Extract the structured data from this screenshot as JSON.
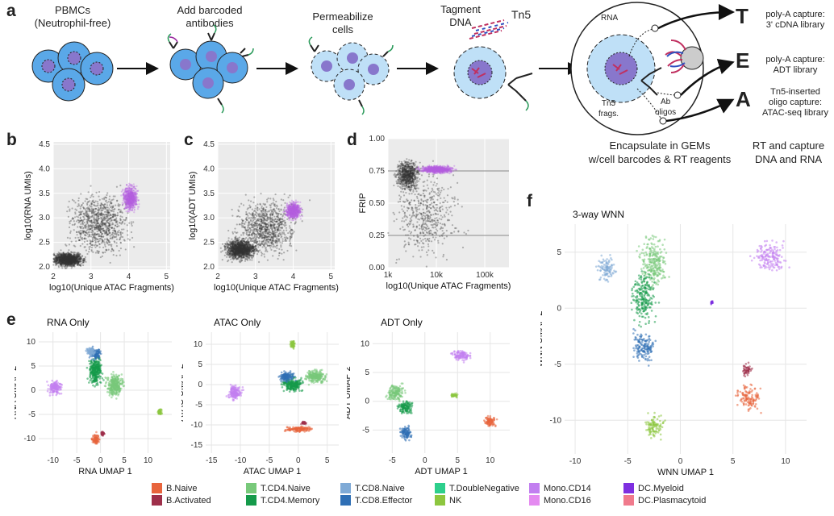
{
  "panel_letters": {
    "a": "a",
    "b": "b",
    "c": "c",
    "d": "d",
    "e": "e",
    "f": "f"
  },
  "workflow": {
    "step1": [
      "PBMCs",
      "(Neutrophil-free)"
    ],
    "step2": [
      "Add barcoded",
      "antibodies"
    ],
    "step3": [
      "Permeabilize",
      "cells"
    ],
    "step4": [
      "Tagment",
      "DNA"
    ],
    "tn5": "Tn5",
    "gem_rna": "RNA",
    "gem_tn5": [
      "Tn5",
      "frags."
    ],
    "gem_ab": [
      "Ab",
      "oligos"
    ],
    "encapsulate": [
      "Encapsulate in GEMs",
      "w/cell barcodes & RT reagents"
    ],
    "rt": [
      "RT and capture",
      "DNA and RNA"
    ],
    "outputs": [
      {
        "letter": "T",
        "lines": [
          "poly-A capture:",
          "3' cDNA library"
        ]
      },
      {
        "letter": "E",
        "lines": [
          "poly-A capture:",
          "ADT library"
        ]
      },
      {
        "letter": "A",
        "lines": [
          "Tn5-inserted",
          "oligo capture:",
          "ATAC-seq library"
        ]
      }
    ]
  },
  "colors": {
    "cell_fill": "#5aa8e8",
    "nucleus": "#8877cc",
    "purple": "#b45fe0",
    "gray": "#333333",
    "B.Naive": "#e8643c",
    "B.Activated": "#9e2f4a",
    "T.CD4.Naive": "#78c97a",
    "T.CD4.Memory": "#159a4a",
    "T.CD8.Naive": "#7faad6",
    "T.CD8.Effector": "#2f6fb5",
    "T.DoubleNegative": "#2dcf8c",
    "NK": "#8dc63f",
    "Mono.CD14": "#c27ff0",
    "Mono.CD16": "#e48af0",
    "DC.Myeloid": "#7e2fe0",
    "DC.Plasmacytoid": "#f07a8c"
  },
  "chart_data": [
    {
      "panel": "b",
      "type": "scatter",
      "xlabel": "log10(Unique ATAC Fragments)",
      "ylabel": "log10(RNA UMIs)",
      "xticks": [
        "2",
        "3",
        "4",
        "5"
      ],
      "yticks": [
        "2.0",
        "2.5",
        "3.0",
        "3.5",
        "4.0",
        "4.5"
      ],
      "xlim": [
        2,
        5.1
      ],
      "ylim": [
        1.95,
        4.55
      ],
      "series": [
        {
          "color": "gray",
          "center": [
            2.4,
            2.15
          ],
          "spread": [
            0.35,
            0.12
          ],
          "n": 1300
        },
        {
          "color": "gray",
          "center": [
            3.2,
            2.9
          ],
          "spread": [
            0.7,
            0.55
          ],
          "n": 900
        },
        {
          "color": "purple",
          "center": [
            4.05,
            3.4
          ],
          "spread": [
            0.18,
            0.22
          ],
          "n": 700
        }
      ]
    },
    {
      "panel": "c",
      "type": "scatter",
      "xlabel": "log10(Unique ATAC Fragments)",
      "ylabel": "log10(ADT UMIs)",
      "xticks": [
        "2",
        "3",
        "4",
        "5"
      ],
      "yticks": [
        "2.0",
        "2.5",
        "3.0",
        "3.5",
        "4.0",
        "4.5"
      ],
      "xlim": [
        2,
        5.1
      ],
      "ylim": [
        1.95,
        4.55
      ],
      "series": [
        {
          "color": "gray",
          "center": [
            2.6,
            2.35
          ],
          "spread": [
            0.35,
            0.18
          ],
          "n": 1300
        },
        {
          "color": "gray",
          "center": [
            3.3,
            2.8
          ],
          "spread": [
            0.7,
            0.5
          ],
          "n": 900
        },
        {
          "color": "purple",
          "center": [
            4.0,
            3.15
          ],
          "spread": [
            0.18,
            0.15
          ],
          "n": 700
        }
      ]
    },
    {
      "panel": "d",
      "type": "scatter",
      "xlabel": "log10(Unique ATAC Fragments)",
      "ylabel": "FRIP",
      "xticks": [
        "1k",
        "10k",
        "100k"
      ],
      "yticks": [
        "0.00",
        "0.25",
        "0.50",
        "0.75",
        "1.00"
      ],
      "xlim": [
        3,
        5.5
      ],
      "ylim": [
        0,
        1
      ],
      "hlines": [
        0.75,
        0.25
      ],
      "series": [
        {
          "color": "gray",
          "center": [
            3.4,
            0.72
          ],
          "spread": [
            0.2,
            0.1
          ],
          "n": 700
        },
        {
          "color": "gray",
          "center": [
            3.8,
            0.4
          ],
          "spread": [
            0.6,
            0.3
          ],
          "n": 500
        },
        {
          "color": "purple",
          "center": [
            4.0,
            0.76
          ],
          "spread": [
            0.3,
            0.025
          ],
          "n": 800
        }
      ]
    },
    {
      "panel": "e1",
      "type": "scatter",
      "title": "RNA Only",
      "xlabel": "RNA UMAP 1",
      "ylabel": "RNA UMAP 2",
      "xticks": [
        "-10",
        "-5",
        "0",
        "5",
        "10"
      ],
      "yticks": [
        "-10",
        "-5",
        "0",
        "5",
        "10"
      ],
      "xlim": [
        -13,
        15
      ],
      "ylim": [
        -13,
        12
      ],
      "clusters": [
        [
          "Mono.CD14",
          [
            -9.5,
            0.5
          ],
          [
            1.2,
            1.2
          ]
        ],
        [
          "T.CD4.Naive",
          [
            3,
            1
          ],
          [
            1.5,
            2
          ]
        ],
        [
          "T.CD4.Memory",
          [
            -1,
            4
          ],
          [
            1.2,
            2.5
          ]
        ],
        [
          "T.CD8.Effector",
          [
            -1,
            7.5
          ],
          [
            1,
            1
          ]
        ],
        [
          "T.CD8.Naive",
          [
            -2,
            8
          ],
          [
            0.8,
            0.8
          ]
        ],
        [
          "NK",
          [
            12.5,
            -4.5
          ],
          [
            0.4,
            0.6
          ]
        ],
        [
          "B.Naive",
          [
            -1,
            -10
          ],
          [
            0.7,
            0.9
          ]
        ],
        [
          "B.Activated",
          [
            0.5,
            -9
          ],
          [
            0.3,
            0.4
          ]
        ]
      ]
    },
    {
      "panel": "e2",
      "type": "scatter",
      "title": "ATAC Only",
      "xlabel": "ATAC UMAP 1",
      "ylabel": "ATAC UMAP 2",
      "xticks": [
        "-15",
        "-10",
        "-5",
        "0",
        "5"
      ],
      "yticks": [
        "-15",
        "-10",
        "-5",
        "0",
        "5",
        "10"
      ],
      "xlim": [
        -16,
        7
      ],
      "ylim": [
        -17,
        13
      ],
      "clusters": [
        [
          "Mono.CD14",
          [
            -11,
            -2
          ],
          [
            1,
            1.5
          ]
        ],
        [
          "T.CD4.Naive",
          [
            3,
            2
          ],
          [
            1.5,
            1.5
          ]
        ],
        [
          "T.CD4.Memory",
          [
            -1,
            0
          ],
          [
            1.5,
            1.5
          ]
        ],
        [
          "T.CD8.Effector",
          [
            -2,
            2
          ],
          [
            1.2,
            1
          ]
        ],
        [
          "NK",
          [
            -1,
            10
          ],
          [
            0.4,
            1
          ]
        ],
        [
          "B.Naive",
          [
            0,
            -11
          ],
          [
            2,
            0.6
          ]
        ],
        [
          "B.Activated",
          [
            1,
            -9.5
          ],
          [
            0.4,
            0.3
          ]
        ]
      ]
    },
    {
      "panel": "e3",
      "type": "scatter",
      "title": "ADT Only",
      "xlabel": "ADT UMAP 1",
      "ylabel": "ADT UMAP 2",
      "xticks": [
        "-5",
        "0",
        "5",
        "10"
      ],
      "yticks": [
        "-5",
        "0",
        "5",
        "10"
      ],
      "xlim": [
        -8,
        13
      ],
      "ylim": [
        -9,
        12
      ],
      "clusters": [
        [
          "Mono.CD14",
          [
            5.5,
            8
          ],
          [
            1.2,
            0.8
          ]
        ],
        [
          "T.CD4.Naive",
          [
            -4.5,
            1.5
          ],
          [
            1.2,
            1.2
          ]
        ],
        [
          "T.CD4.Memory",
          [
            -3,
            -1
          ],
          [
            1,
            1
          ]
        ],
        [
          "T.CD8.Effector",
          [
            -3,
            -5.5
          ],
          [
            0.8,
            1
          ]
        ],
        [
          "NK",
          [
            4.5,
            1
          ],
          [
            0.5,
            0.3
          ]
        ],
        [
          "B.Naive",
          [
            10,
            -3.5
          ],
          [
            0.8,
            0.8
          ]
        ]
      ]
    },
    {
      "panel": "f",
      "type": "scatter",
      "title": "3-way WNN",
      "xlabel": "WNN UMAP 1",
      "ylabel": "WNN UMAP 2",
      "xticks": [
        "-10",
        "-5",
        "0",
        "5",
        "10"
      ],
      "yticks": [
        "-10",
        "-5",
        "0",
        "5"
      ],
      "xlim": [
        -11,
        12
      ],
      "ylim": [
        -13,
        7.5
      ],
      "clusters": [
        [
          "T.CD4.Naive",
          [
            -2.5,
            4
          ],
          [
            1.2,
            2
          ]
        ],
        [
          "T.CD4.Memory",
          [
            -3.5,
            1
          ],
          [
            1,
            2
          ]
        ],
        [
          "T.CD8.Naive",
          [
            -7,
            3.5
          ],
          [
            0.8,
            1
          ]
        ],
        [
          "T.CD8.Effector",
          [
            -3.5,
            -3.5
          ],
          [
            1,
            1.3
          ]
        ],
        [
          "Mono.CD14",
          [
            8.5,
            4.5
          ],
          [
            1.2,
            1.2
          ]
        ],
        [
          "B.Naive",
          [
            6.5,
            -8
          ],
          [
            1,
            1
          ]
        ],
        [
          "B.Activated",
          [
            6.3,
            -5.5
          ],
          [
            0.4,
            0.5
          ]
        ],
        [
          "NK",
          [
            -2.5,
            -10.5
          ],
          [
            0.8,
            1
          ]
        ],
        [
          "DC.Myeloid",
          [
            3,
            0.5
          ],
          [
            0.1,
            0.1
          ]
        ]
      ]
    }
  ],
  "legend": [
    [
      "B.Naive",
      "B.Activated"
    ],
    [
      "T.CD4.Naive",
      "T.CD4.Memory"
    ],
    [
      "T.CD8.Naive",
      "T.CD8.Effector"
    ],
    [
      "T.DoubleNegative",
      "NK"
    ],
    [
      "Mono.CD14",
      "Mono.CD16"
    ],
    [
      "DC.Myeloid",
      "DC.Plasmacytoid"
    ]
  ]
}
